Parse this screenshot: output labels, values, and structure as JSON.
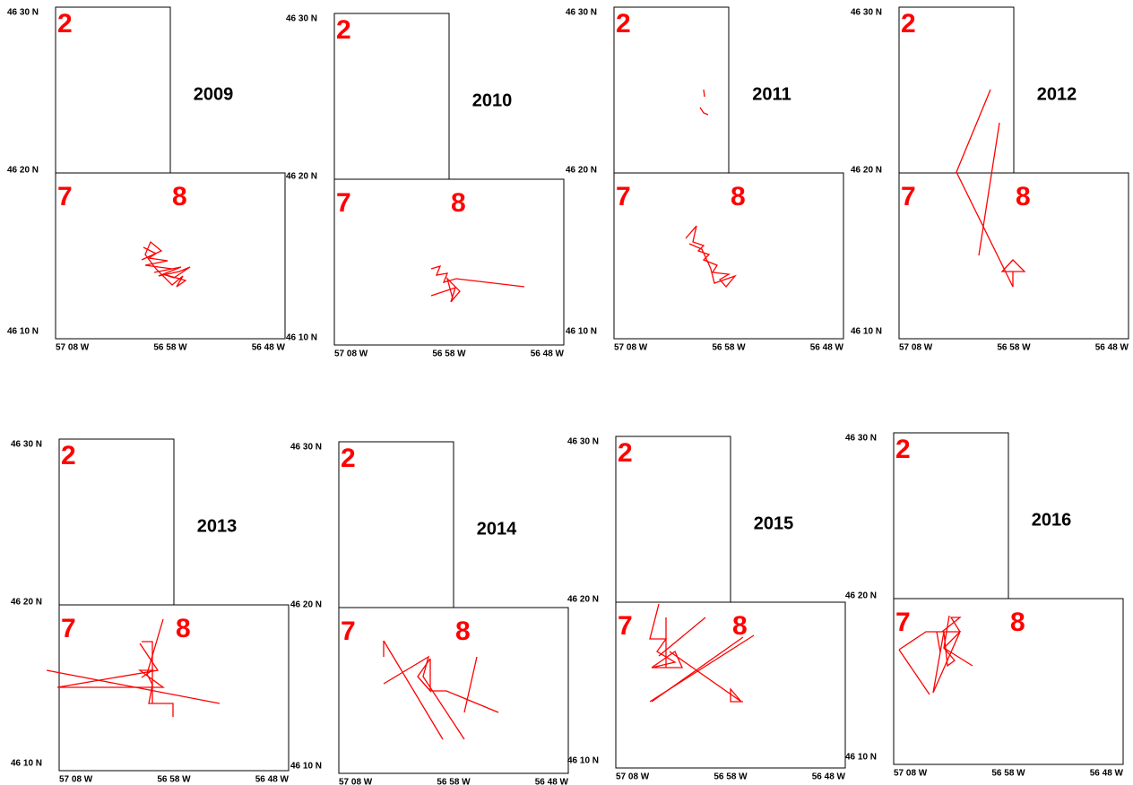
{
  "lat_labels": [
    "46 30 N",
    "46 20 N",
    "46 10 N"
  ],
  "lon_labels": [
    "57 08 W",
    "56 58 W",
    "56 48 W"
  ],
  "cell_labels": [
    "2",
    "7",
    "8"
  ],
  "panels": [
    {
      "year": "2009"
    },
    {
      "year": "2010"
    },
    {
      "year": "2011"
    },
    {
      "year": "2012"
    },
    {
      "year": "2013"
    },
    {
      "year": "2014"
    },
    {
      "year": "2015"
    },
    {
      "year": "2016"
    }
  ]
}
